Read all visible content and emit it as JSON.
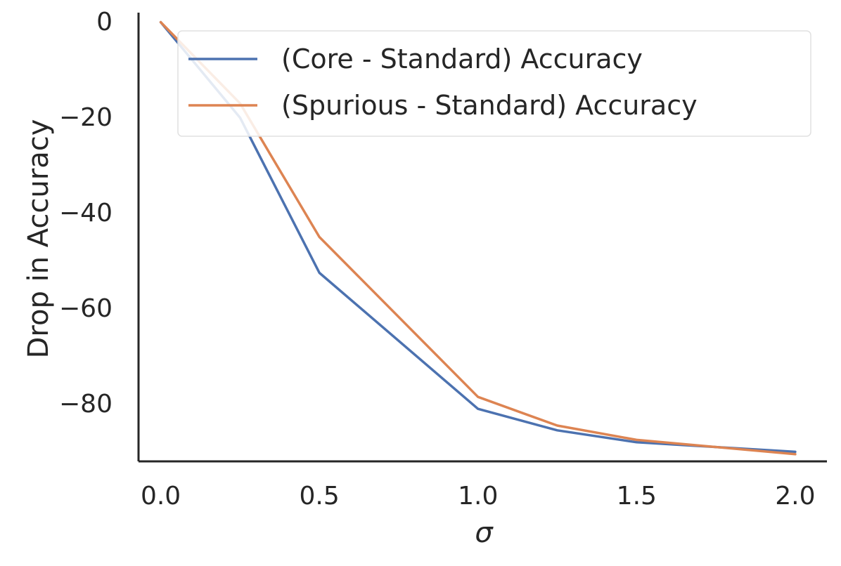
{
  "chart_data": {
    "type": "line",
    "title": "",
    "xlabel": "σ",
    "ylabel": "Drop in Accuracy",
    "x": [
      0.0,
      0.25,
      0.5,
      1.0,
      1.25,
      1.5,
      2.0
    ],
    "xlim": [
      -0.07,
      2.1
    ],
    "ylim": [
      -92,
      2
    ],
    "xticks": [
      0.0,
      0.5,
      1.0,
      1.5,
      2.0
    ],
    "xtick_labels": [
      "0.0",
      "0.5",
      "1.0",
      "1.5",
      "2.0"
    ],
    "yticks": [
      0,
      -20,
      -40,
      -60,
      -80
    ],
    "ytick_labels": [
      "0",
      "−20",
      "−40",
      "−60",
      "−80"
    ],
    "grid": false,
    "legend_position": "top-right",
    "series": [
      {
        "name": "(Core - Standard) Accuracy",
        "color": "#4C72B0",
        "values": [
          0,
          -20,
          -52.5,
          -81,
          -85.5,
          -88,
          -90
        ]
      },
      {
        "name": "(Spurious - Standard) Accuracy",
        "color": "#DD8452",
        "values": [
          0,
          -17,
          -45,
          -78.5,
          -84.5,
          -87.5,
          -90.5
        ]
      }
    ]
  }
}
